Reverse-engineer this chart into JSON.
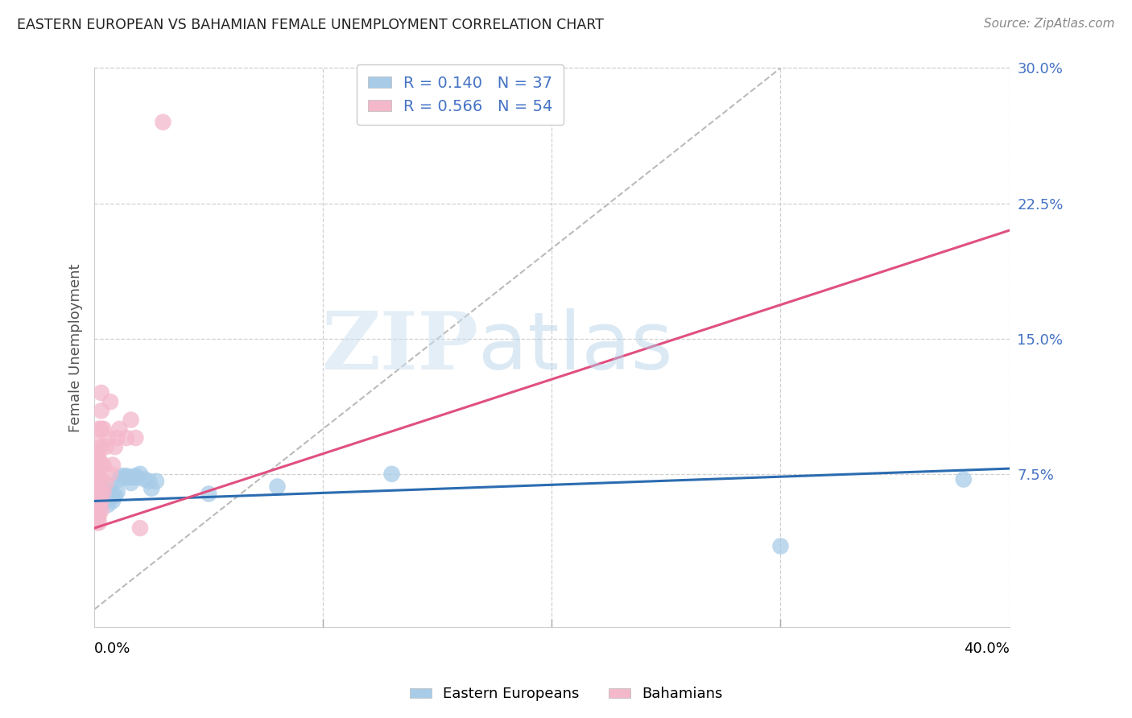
{
  "title": "EASTERN EUROPEAN VS BAHAMIAN FEMALE UNEMPLOYMENT CORRELATION CHART",
  "source": "Source: ZipAtlas.com",
  "ylabel": "Female Unemployment",
  "xlim": [
    0,
    0.4
  ],
  "ylim": [
    -0.01,
    0.3
  ],
  "right_yticks": [
    0.075,
    0.15,
    0.225,
    0.3
  ],
  "right_yticklabels": [
    "7.5%",
    "15.0%",
    "22.5%",
    "30.0%"
  ],
  "legend_r1": "R = 0.140",
  "legend_n1": "N = 37",
  "legend_r2": "R = 0.566",
  "legend_n2": "N = 54",
  "legend_label1": "Eastern Europeans",
  "legend_label2": "Bahamians",
  "blue_color": "#a8cce8",
  "pink_color": "#f4b8cb",
  "blue_line_color": "#2b6cb0",
  "pink_line_color": "#e05080",
  "watermark_zip": "ZIP",
  "watermark_atlas": "atlas",
  "background_color": "#ffffff",
  "grid_color": "#d0d0d0",
  "blue_scatter_x": [
    0.001,
    0.001,
    0.002,
    0.002,
    0.003,
    0.003,
    0.004,
    0.004,
    0.005,
    0.005,
    0.006,
    0.006,
    0.007,
    0.007,
    0.008,
    0.008,
    0.009,
    0.01,
    0.011,
    0.012,
    0.013,
    0.014,
    0.015,
    0.016,
    0.017,
    0.018,
    0.019,
    0.02,
    0.022,
    0.024,
    0.025,
    0.027,
    0.05,
    0.08,
    0.13,
    0.3,
    0.38
  ],
  "blue_scatter_y": [
    0.055,
    0.05,
    0.06,
    0.062,
    0.058,
    0.064,
    0.06,
    0.066,
    0.061,
    0.063,
    0.058,
    0.065,
    0.062,
    0.068,
    0.064,
    0.06,
    0.063,
    0.065,
    0.072,
    0.074,
    0.073,
    0.074,
    0.073,
    0.07,
    0.073,
    0.074,
    0.073,
    0.075,
    0.072,
    0.071,
    0.067,
    0.071,
    0.064,
    0.068,
    0.075,
    0.035,
    0.072
  ],
  "pink_scatter_x": [
    0.001,
    0.001,
    0.001,
    0.001,
    0.001,
    0.001,
    0.001,
    0.001,
    0.001,
    0.001,
    0.001,
    0.001,
    0.001,
    0.001,
    0.001,
    0.001,
    0.002,
    0.002,
    0.002,
    0.002,
    0.002,
    0.002,
    0.002,
    0.002,
    0.002,
    0.002,
    0.002,
    0.002,
    0.003,
    0.003,
    0.003,
    0.003,
    0.003,
    0.003,
    0.003,
    0.003,
    0.003,
    0.004,
    0.004,
    0.004,
    0.005,
    0.005,
    0.006,
    0.007,
    0.007,
    0.008,
    0.009,
    0.01,
    0.011,
    0.014,
    0.016,
    0.018,
    0.02,
    0.03
  ],
  "pink_scatter_y": [
    0.048,
    0.05,
    0.052,
    0.055,
    0.057,
    0.06,
    0.062,
    0.064,
    0.066,
    0.068,
    0.07,
    0.072,
    0.075,
    0.078,
    0.082,
    0.085,
    0.048,
    0.052,
    0.055,
    0.06,
    0.063,
    0.067,
    0.072,
    0.078,
    0.083,
    0.088,
    0.092,
    0.1,
    0.055,
    0.06,
    0.065,
    0.072,
    0.08,
    0.09,
    0.1,
    0.11,
    0.12,
    0.065,
    0.08,
    0.1,
    0.07,
    0.09,
    0.095,
    0.075,
    0.115,
    0.08,
    0.09,
    0.095,
    0.1,
    0.095,
    0.105,
    0.095,
    0.045,
    0.27
  ],
  "pink_line_x0": 0.0,
  "pink_line_y0": 0.045,
  "pink_line_x1": 0.4,
  "pink_line_y1": 0.21,
  "blue_line_x0": 0.0,
  "blue_line_y0": 0.06,
  "blue_line_x1": 0.4,
  "blue_line_y1": 0.078,
  "diag_line_x": [
    0.0,
    0.3
  ],
  "diag_line_y": [
    0.0,
    0.3
  ]
}
